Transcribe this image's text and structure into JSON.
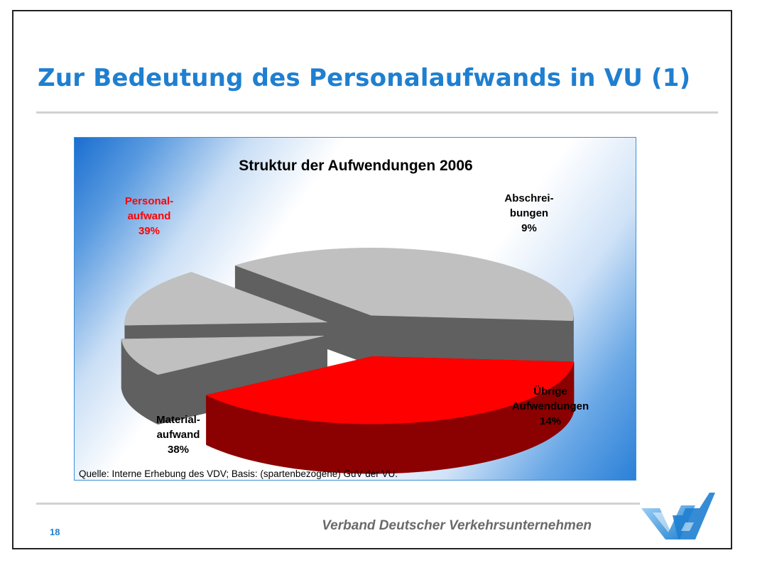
{
  "slide": {
    "title": "Zur Bedeutung des Personalaufwands in VU (1)",
    "page_number": "18",
    "organization": "Verband Deutscher Verkehrsunternehmen",
    "logo_text": "VDV",
    "accent_color": "#1f7fd0"
  },
  "chart_data": {
    "type": "pie",
    "title": "Struktur der Aufwendungen 2006",
    "source": "Quelle: Interne Erhebung des VDV; Basis: (spartenbezogene) GuV der VU.",
    "legend": "none",
    "slices": [
      {
        "label_lines": [
          "Personal-",
          "aufwand"
        ],
        "value": 39,
        "value_label": "39%",
        "color": "#ff0000",
        "side_color": "#8b0000",
        "label_color": "#ff0000",
        "exploded": true
      },
      {
        "label_lines": [
          "Abschrei-",
          "bungen"
        ],
        "value": 9,
        "value_label": "9%",
        "color": "#c0c0c0",
        "side_color": "#606060",
        "label_color": "#000000",
        "exploded": true
      },
      {
        "label_lines": [
          "Übrige",
          "Aufwendungen"
        ],
        "value": 14,
        "value_label": "14%",
        "color": "#c0c0c0",
        "side_color": "#606060",
        "label_color": "#000000",
        "exploded": true
      },
      {
        "label_lines": [
          "Material-",
          "aufwand"
        ],
        "value": 38,
        "value_label": "38%",
        "color": "#c0c0c0",
        "side_color": "#606060",
        "label_color": "#000000",
        "exploded": true
      }
    ]
  }
}
